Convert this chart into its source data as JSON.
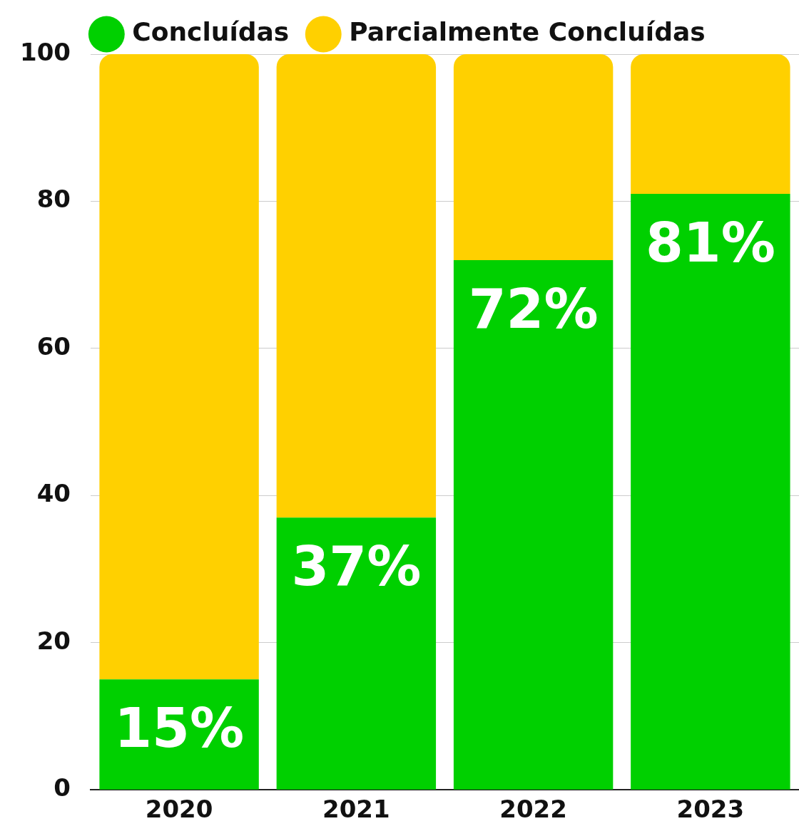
{
  "chart_data": {
    "type": "bar",
    "stacked": true,
    "categories": [
      "2020",
      "2021",
      "2022",
      "2023"
    ],
    "series": [
      {
        "name": "Concluídas",
        "color": "#00d000",
        "values": [
          15,
          37,
          72,
          81
        ],
        "value_labels": [
          "15%",
          "37%",
          "72%",
          "81%"
        ]
      },
      {
        "name": "Parcialmente Concluídas",
        "color": "#ffd000",
        "values": [
          85,
          63,
          28,
          19
        ]
      }
    ],
    "ylim": [
      0,
      100
    ],
    "yticks": [
      0,
      20,
      40,
      60,
      80,
      100
    ],
    "grid": "y",
    "legend": "top"
  }
}
